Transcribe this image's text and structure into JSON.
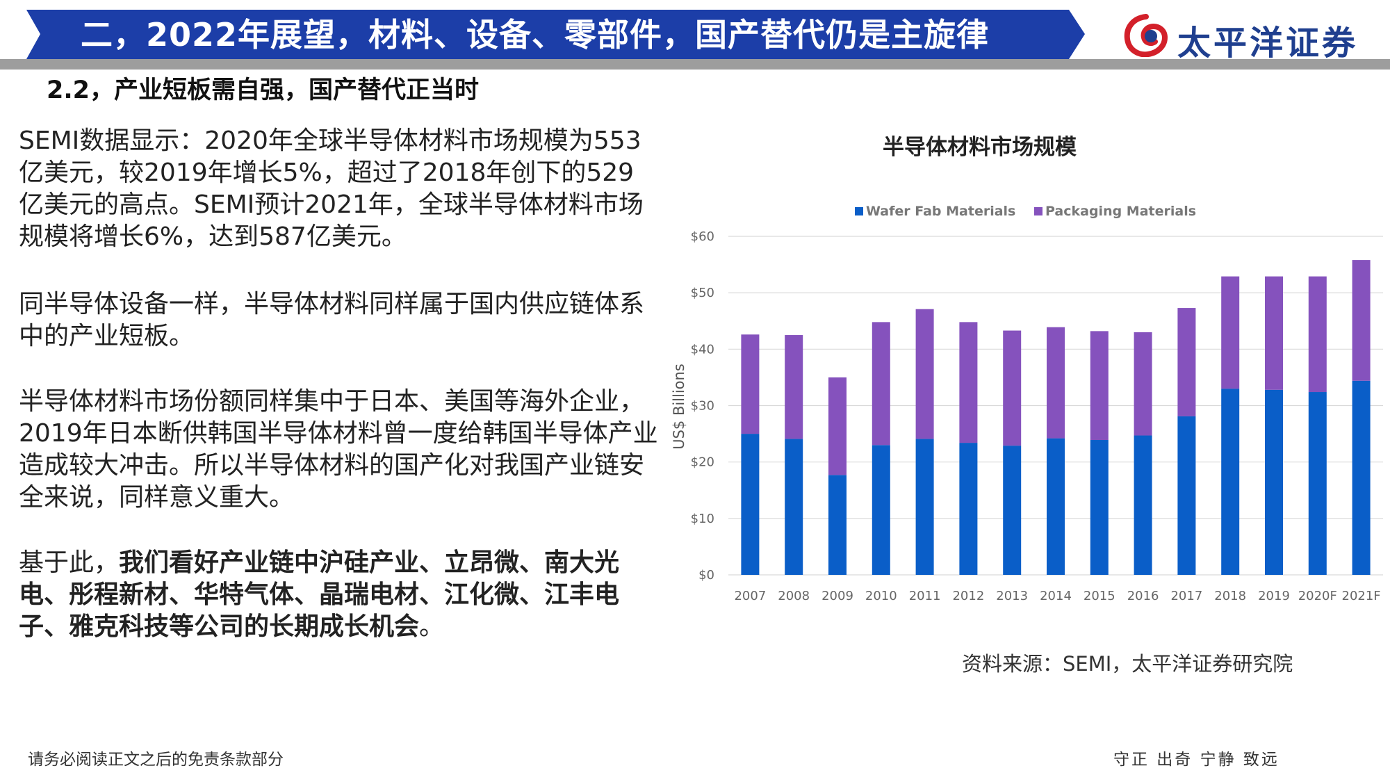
{
  "header": {
    "title": "二，2022年展望，材料、设备、零部件，国产替代仍是主旋律",
    "brand": "太平洋证券",
    "banner_color": "#1c3ea8",
    "brand_color": "#1f3f8f",
    "logo_accent": "#d3202a"
  },
  "section_title": "2.2，产业短板需自强，国产替代正当时",
  "paragraphs": {
    "p1": "SEMI数据显示：2020年全球半导体材料市场规模为553亿美元，较2019年增长5%，超过了2018年创下的529亿美元的高点。SEMI预计2021年，全球半导体材料市场规模将增长6%，达到587亿美元。",
    "p2": "同半导体设备一样，半导体材料同样属于国内供应链体系中的产业短板。",
    "p3": "半导体材料市场份额同样集中于日本、美国等海外企业，2019年日本断供韩国半导体材料曾一度给韩国半导体产业造成较大冲击。所以半导体材料的国产化对我国产业链安全来说，同样意义重大。",
    "p4_lead": "基于此，",
    "p4_bold": "我们看好产业链中沪硅产业、立昂微、南大光电、彤程新材、华特气体、晶瑞电材、江化微、江丰电子、雅克科技等公司的长期成长机会",
    "p4_end": "。"
  },
  "chart_data": {
    "type": "bar",
    "stacked": true,
    "title": "半导体材料市场规模",
    "ylabel": "US$ Billions",
    "xlabel": "",
    "ylim": [
      0,
      60
    ],
    "yticks": [
      "$0",
      "$10",
      "$20",
      "$30",
      "$40",
      "$50",
      "$60"
    ],
    "grid": true,
    "legend": "top",
    "categories": [
      "2007",
      "2008",
      "2009",
      "2010",
      "2011",
      "2012",
      "2013",
      "2014",
      "2015",
      "2016",
      "2017",
      "2018",
      "2019",
      "2020F",
      "2021F"
    ],
    "series": [
      {
        "name": "Wafer Fab Materials",
        "color": "#0a5ec8",
        "values": [
          25.0,
          24.1,
          17.7,
          23.0,
          24.1,
          23.4,
          22.9,
          24.2,
          23.9,
          24.7,
          28.1,
          33.0,
          32.8,
          32.4,
          34.4
        ]
      },
      {
        "name": "Packaging Materials",
        "color": "#8552bd",
        "values": [
          17.6,
          18.4,
          17.3,
          21.8,
          23.0,
          21.4,
          20.4,
          19.7,
          19.3,
          18.3,
          19.2,
          19.9,
          20.1,
          20.5,
          21.4
        ]
      }
    ]
  },
  "source": "资料来源：SEMI，太平洋证券研究院",
  "footer": {
    "left": "请务必阅读正文之后的免责条款部分",
    "right": "守正 出奇 宁静 致远"
  }
}
